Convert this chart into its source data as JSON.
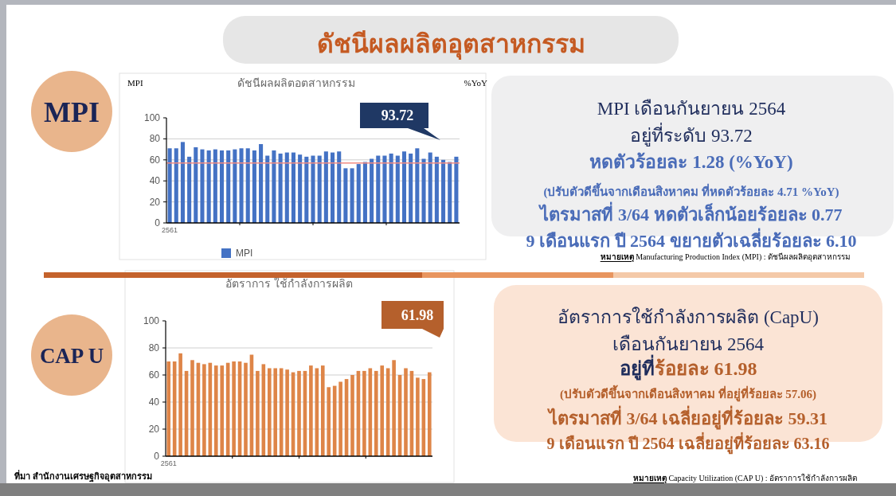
{
  "chart_data": [
    {
      "type": "other",
      "title": "ดัชนีผลผลิตอุตสาหกรรม",
      "annotations": [
        "MPI",
        "CAP U",
        "ที่มา สำนักงานเศรษฐกิจอุตสาหกรรม"
      ]
    },
    {
      "type": "bar",
      "title": "ดัชนีผลผลิตอตสาหกรรม",
      "ylabel": "MPI",
      "y2label": "%YoY",
      "categories": [
        "2561",
        null,
        null,
        null,
        null,
        null,
        null,
        null,
        null,
        null,
        null,
        null,
        null,
        null,
        null,
        null,
        null,
        null,
        null,
        null,
        null,
        null,
        null,
        null,
        null,
        null,
        null,
        null,
        null,
        null,
        null,
        null,
        null,
        null,
        null,
        null,
        null,
        null,
        null,
        null,
        null,
        null,
        null,
        null,
        null
      ],
      "series": [
        {
          "name": "MPI",
          "color": "#4472c4",
          "values": [
            71,
            71,
            77,
            63,
            72,
            70,
            69,
            70,
            69,
            69,
            70,
            71,
            71,
            69,
            75,
            64,
            69,
            66,
            67,
            67,
            65,
            63,
            64,
            64,
            68,
            67,
            68,
            52,
            52,
            56,
            58,
            61,
            64,
            64,
            66,
            64,
            68,
            66,
            71,
            61,
            67,
            63,
            60,
            58,
            63
          ]
        }
      ],
      "ylim": [
        0,
        100
      ],
      "yticks": [
        0,
        20,
        40,
        60,
        80,
        100
      ],
      "grid": "y",
      "legend": "bottom",
      "ref_lines": [
        {
          "axis": "y",
          "value": 57,
          "color": "#f28b82"
        }
      ],
      "annotations": [
        "93.72"
      ]
    },
    {
      "type": "other",
      "annotations": [
        "MPI เดือนกันยายน 2564",
        "อยู่ที่ระดับ 93.72",
        "หดตัวร้อยละ 1.28 (%YoY)",
        "(ปรับตัวดีขึ้นจากเดือนสิงหาคม ที่หดตัวร้อยละ 4.71 %YoY)",
        "ไตรมาสที่ 3/64 หดตัวเล็กน้อยร้อยละ 0.77",
        "9 เดือนแรก ปี 2564 ขยายตัวเฉลี่ยร้อยละ 6.10",
        "หมายเหตุ Manufacturing Production Index (MPI) : ดัชนีผลผลิตอุตสาหกรรม"
      ]
    },
    {
      "type": "bar",
      "title": "อัตราการ ใช้กำลังการผลิต",
      "categories": [
        "2561",
        null,
        null,
        null,
        null,
        null,
        null,
        null,
        null,
        null,
        null,
        null,
        null,
        null,
        null,
        null,
        null,
        null,
        null,
        null,
        null,
        null,
        null,
        null,
        null,
        null,
        null,
        null,
        null,
        null,
        null,
        null,
        null,
        null,
        null,
        null,
        null,
        null,
        null,
        null,
        null,
        null,
        null,
        null,
        null
      ],
      "series": [
        {
          "color": "#de8548",
          "values": [
            70,
            70,
            76,
            63,
            71,
            69,
            68,
            69,
            67,
            67,
            69,
            70,
            70,
            69,
            75,
            63,
            68,
            65,
            65,
            65,
            64,
            62,
            63,
            63,
            67,
            65,
            67,
            51,
            52,
            55,
            57,
            60,
            63,
            63,
            65,
            63,
            67,
            65,
            71,
            60,
            65,
            63,
            58,
            57,
            62
          ]
        }
      ],
      "ylim": [
        0,
        100
      ],
      "yticks": [
        0,
        20,
        40,
        60,
        80,
        100
      ],
      "grid": "y",
      "annotations": [
        "61.98"
      ]
    },
    {
      "type": "other",
      "annotations": [
        "อัตราการใช้กำลังการผลิต (CapU)",
        "เดือนกันยายน 2564",
        "อยู่ที่",
        "ร้อยละ 61.98",
        "(ปรับตัวดีขึ้นจากเดือนสิงหาคม ที่อยู่ที่ร้อยละ 57.06)",
        "ไตรมาสที่ 3/64 เฉลี่ยอยู่ที่ร้อยละ 59.31",
        "9 เดือนแรก ปี 2564 เฉลี่ยอยู่ที่ร้อยละ 63.16",
        "หมายเหตุ Capacity Utilization (CAP U) : อัตราการใช้กำลังการผลิต"
      ]
    }
  ]
}
